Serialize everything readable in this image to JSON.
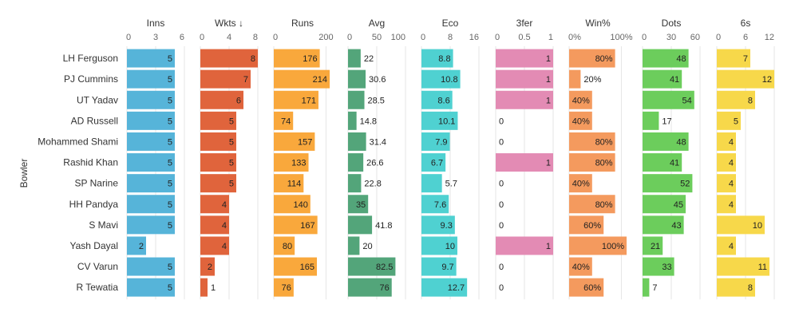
{
  "chart_data": {
    "type": "bar",
    "ylabel": "Bowler",
    "bowlers": [
      "LH Ferguson",
      "PJ Cummins",
      "UT Yadav",
      "AD Russell",
      "Mohammed Shami",
      "Rashid Khan",
      "SP Narine",
      "HH Pandya",
      "S Mavi",
      "Yash Dayal",
      "CV Varun",
      "R Tewatia"
    ],
    "panels": [
      {
        "title": "Inns",
        "color": "#56b4d9",
        "ticks": [
          "0",
          "3",
          "6"
        ],
        "domain": [
          0,
          6
        ],
        "values": [
          5,
          5,
          5,
          5,
          5,
          5,
          5,
          5,
          5,
          2,
          5,
          5
        ],
        "labels": [
          "5",
          "5",
          "5",
          "5",
          "5",
          "5",
          "5",
          "5",
          "5",
          "2",
          "5",
          "5"
        ]
      },
      {
        "title": "Wkts ↓",
        "color": "#e0643c",
        "ticks": [
          "0",
          "4",
          "8"
        ],
        "domain": [
          0,
          8
        ],
        "values": [
          8,
          7,
          6,
          5,
          5,
          5,
          5,
          4,
          4,
          4,
          2,
          1
        ],
        "labels": [
          "8",
          "7",
          "6",
          "5",
          "5",
          "5",
          "5",
          "4",
          "4",
          "4",
          "2",
          "1"
        ]
      },
      {
        "title": "Runs",
        "color": "#f9a83c",
        "ticks": [
          "0",
          "200"
        ],
        "domain": [
          0,
          220
        ],
        "values": [
          176,
          214,
          171,
          74,
          157,
          133,
          114,
          140,
          167,
          80,
          165,
          76
        ],
        "labels": [
          "176",
          "214",
          "171",
          "74",
          "157",
          "133",
          "114",
          "140",
          "167",
          "80",
          "165",
          "76"
        ]
      },
      {
        "title": "Avg",
        "color": "#53a57a",
        "ticks": [
          "0",
          "50",
          "100"
        ],
        "domain": [
          0,
          100
        ],
        "values": [
          22,
          30.6,
          28.5,
          14.8,
          31.4,
          26.6,
          22.8,
          35,
          41.8,
          20,
          82.5,
          76
        ],
        "labels": [
          "22",
          "30.6",
          "28.5",
          "14.8",
          "31.4",
          "26.6",
          "22.8",
          "35",
          "41.8",
          "20",
          "82.5",
          "76"
        ]
      },
      {
        "title": "Eco",
        "color": "#4fd1d1",
        "ticks": [
          "0",
          "8",
          "16"
        ],
        "domain": [
          0,
          16
        ],
        "values": [
          8.8,
          10.8,
          8.6,
          10.1,
          7.9,
          6.7,
          5.7,
          7.6,
          9.3,
          10,
          9.7,
          12.7
        ],
        "labels": [
          "8.8",
          "10.8",
          "8.6",
          "10.1",
          "7.9",
          "6.7",
          "5.7",
          "7.6",
          "9.3",
          "10",
          "9.7",
          "12.7"
        ]
      },
      {
        "title": "3fer",
        "color": "#e38bb4",
        "ticks": [
          "0",
          "0.5",
          "1"
        ],
        "domain": [
          0,
          1
        ],
        "values": [
          1,
          1,
          1,
          0,
          0,
          1,
          0,
          0,
          0,
          1,
          0,
          0
        ],
        "labels": [
          "1",
          "1",
          "1",
          "0",
          "0",
          "1",
          "0",
          "0",
          "0",
          "1",
          "0",
          "0"
        ]
      },
      {
        "title": "Win%",
        "color": "#f49a5e",
        "ticks": [
          "0%",
          "100%"
        ],
        "domain": [
          0,
          100
        ],
        "values": [
          80,
          20,
          40,
          40,
          80,
          80,
          40,
          80,
          60,
          100,
          40,
          60
        ],
        "labels": [
          "80%",
          "20%",
          "40%",
          "40%",
          "80%",
          "80%",
          "40%",
          "80%",
          "60%",
          "100%",
          "40%",
          "60%"
        ]
      },
      {
        "title": "Dots",
        "color": "#6ccd5c",
        "ticks": [
          "0",
          "30",
          "60"
        ],
        "domain": [
          0,
          60
        ],
        "values": [
          48,
          41,
          54,
          17,
          48,
          41,
          52,
          45,
          43,
          21,
          33,
          7
        ],
        "labels": [
          "48",
          "41",
          "54",
          "17",
          "48",
          "41",
          "52",
          "45",
          "43",
          "21",
          "33",
          "7"
        ]
      },
      {
        "title": "6s",
        "color": "#f7d84a",
        "ticks": [
          "0",
          "6",
          "12"
        ],
        "domain": [
          0,
          12
        ],
        "values": [
          7,
          12,
          8,
          5,
          4,
          4,
          4,
          4,
          10,
          4,
          11,
          8
        ],
        "labels": [
          "7",
          "12",
          "8",
          "5",
          "4",
          "4",
          "4",
          "4",
          "10",
          "4",
          "11",
          "8"
        ]
      }
    ]
  }
}
